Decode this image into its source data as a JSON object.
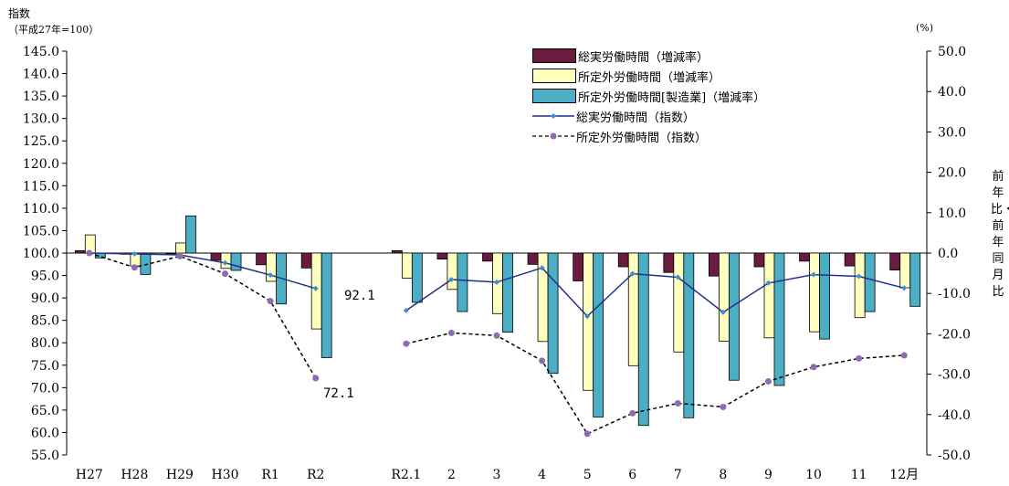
{
  "chart_data": {
    "type": "bar",
    "title": "",
    "left_axis": {
      "title": "指数",
      "subtitle": "（平成27年=100）",
      "min": 55.0,
      "max": 145.0,
      "step": 5.0
    },
    "right_axis": {
      "unit": "(%)",
      "title": "前年比・前年同月比",
      "min": -50.0,
      "max": 50.0,
      "step": 10.0
    },
    "categories": [
      "H27",
      "H28",
      "H29",
      "H30",
      "R1",
      "R2",
      "",
      "R2.1",
      "2",
      "3",
      "4",
      "5",
      "6",
      "7",
      "8",
      "9",
      "10",
      "11",
      "12月"
    ],
    "bar_series": [
      {
        "name": "総実労働時間（増減率）",
        "color": "#6b1a40",
        "values": [
          0.6,
          -0.3,
          -0.2,
          -1.8,
          -2.9,
          -3.7,
          null,
          0.6,
          -1.5,
          -2.0,
          -2.8,
          -6.9,
          -3.4,
          -4.8,
          -5.7,
          -3.4,
          -2.0,
          -3.2,
          -4.2
        ]
      },
      {
        "name": "所定外労働時間（増減率）",
        "color": "#ffffc0",
        "values": [
          4.5,
          -3.2,
          2.5,
          -3.8,
          -7.0,
          -18.8,
          null,
          -6.2,
          -9.0,
          -15.0,
          -21.9,
          -34.0,
          -27.9,
          -24.5,
          -21.8,
          -21.0,
          -19.5,
          -16.0,
          -8.6
        ]
      },
      {
        "name": "所定外労働時間[製造業]（増減率）",
        "color": "#4baec4",
        "values": [
          -1.2,
          -5.3,
          9.2,
          -4.3,
          -12.6,
          -25.9,
          null,
          -12.2,
          -14.5,
          -19.6,
          -29.8,
          -40.6,
          -42.7,
          -40.8,
          -31.5,
          -32.8,
          -21.3,
          -14.5,
          -13.2
        ]
      }
    ],
    "line_series": [
      {
        "name": "総実労働時間（指数）",
        "color": "#1f2f8a",
        "style": "solid",
        "values": [
          100.0,
          99.8,
          99.6,
          97.8,
          95.1,
          92.1,
          null,
          87.2,
          94.1,
          93.5,
          96.7,
          85.9,
          95.4,
          94.6,
          86.8,
          93.3,
          95.2,
          94.8,
          92.2
        ]
      },
      {
        "name": "所定外労働時間（指数）",
        "color": "#000000",
        "style": "dashed",
        "values": [
          100.0,
          96.8,
          99.3,
          95.4,
          89.3,
          72.1,
          null,
          79.8,
          82.2,
          81.6,
          76.0,
          59.7,
          64.3,
          66.5,
          65.7,
          71.4,
          74.6,
          76.5,
          77.2
        ]
      }
    ],
    "annotations": [
      {
        "text": "92.1",
        "target": "R2"
      },
      {
        "text": "72.1",
        "target": "R2"
      }
    ],
    "legend_position": "top-right",
    "grid": false
  }
}
